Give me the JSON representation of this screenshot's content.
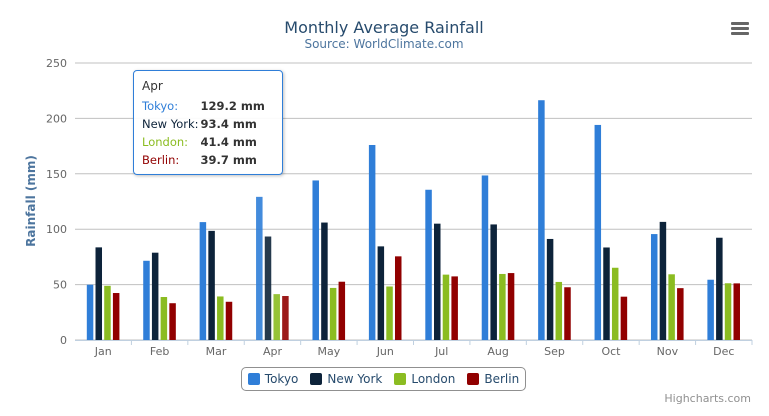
{
  "chart_data": {
    "type": "bar",
    "title": "Monthly Average Rainfall",
    "subtitle": "Source: WorldClimate.com",
    "xlabel": "",
    "ylabel": "Rainfall (mm)",
    "ylim": [
      0,
      250
    ],
    "yticks": [
      "0",
      "50",
      "100",
      "150",
      "200",
      "250"
    ],
    "grid": true,
    "legend_position": "bottom",
    "categories": [
      "Jan",
      "Feb",
      "Mar",
      "Apr",
      "May",
      "Jun",
      "Jul",
      "Aug",
      "Sep",
      "Oct",
      "Nov",
      "Dec"
    ],
    "series": [
      {
        "name": "Tokyo",
        "color": "#2f7ed8",
        "values": [
          49.9,
          71.5,
          106.4,
          129.2,
          144.0,
          176.0,
          135.6,
          148.5,
          216.4,
          194.1,
          95.6,
          54.4
        ]
      },
      {
        "name": "New York",
        "color": "#0d233a",
        "values": [
          83.6,
          78.8,
          98.5,
          93.4,
          106.0,
          84.5,
          105.0,
          104.3,
          91.2,
          83.5,
          106.6,
          92.3
        ]
      },
      {
        "name": "London",
        "color": "#8bbc21",
        "values": [
          48.9,
          38.8,
          39.3,
          41.4,
          47.0,
          48.3,
          59.0,
          59.6,
          52.4,
          65.2,
          59.3,
          51.2
        ]
      },
      {
        "name": "Berlin",
        "color": "#910000",
        "values": [
          42.4,
          33.2,
          34.5,
          39.7,
          52.6,
          75.5,
          57.4,
          60.4,
          47.6,
          39.1,
          46.8,
          51.1
        ]
      }
    ]
  },
  "tooltip": {
    "header": "Apr",
    "rows": [
      {
        "name": "Tokyo:",
        "value": "129.2 mm",
        "color": "#2f7ed8"
      },
      {
        "name": "New York:",
        "value": "93.4 mm",
        "color": "#0d233a"
      },
      {
        "name": "London:",
        "value": "41.4 mm",
        "color": "#8bbc21"
      },
      {
        "name": "Berlin:",
        "value": "39.7 mm",
        "color": "#910000"
      }
    ]
  },
  "credits": "Highcharts.com",
  "menu_icon": "hamburger-menu-icon"
}
